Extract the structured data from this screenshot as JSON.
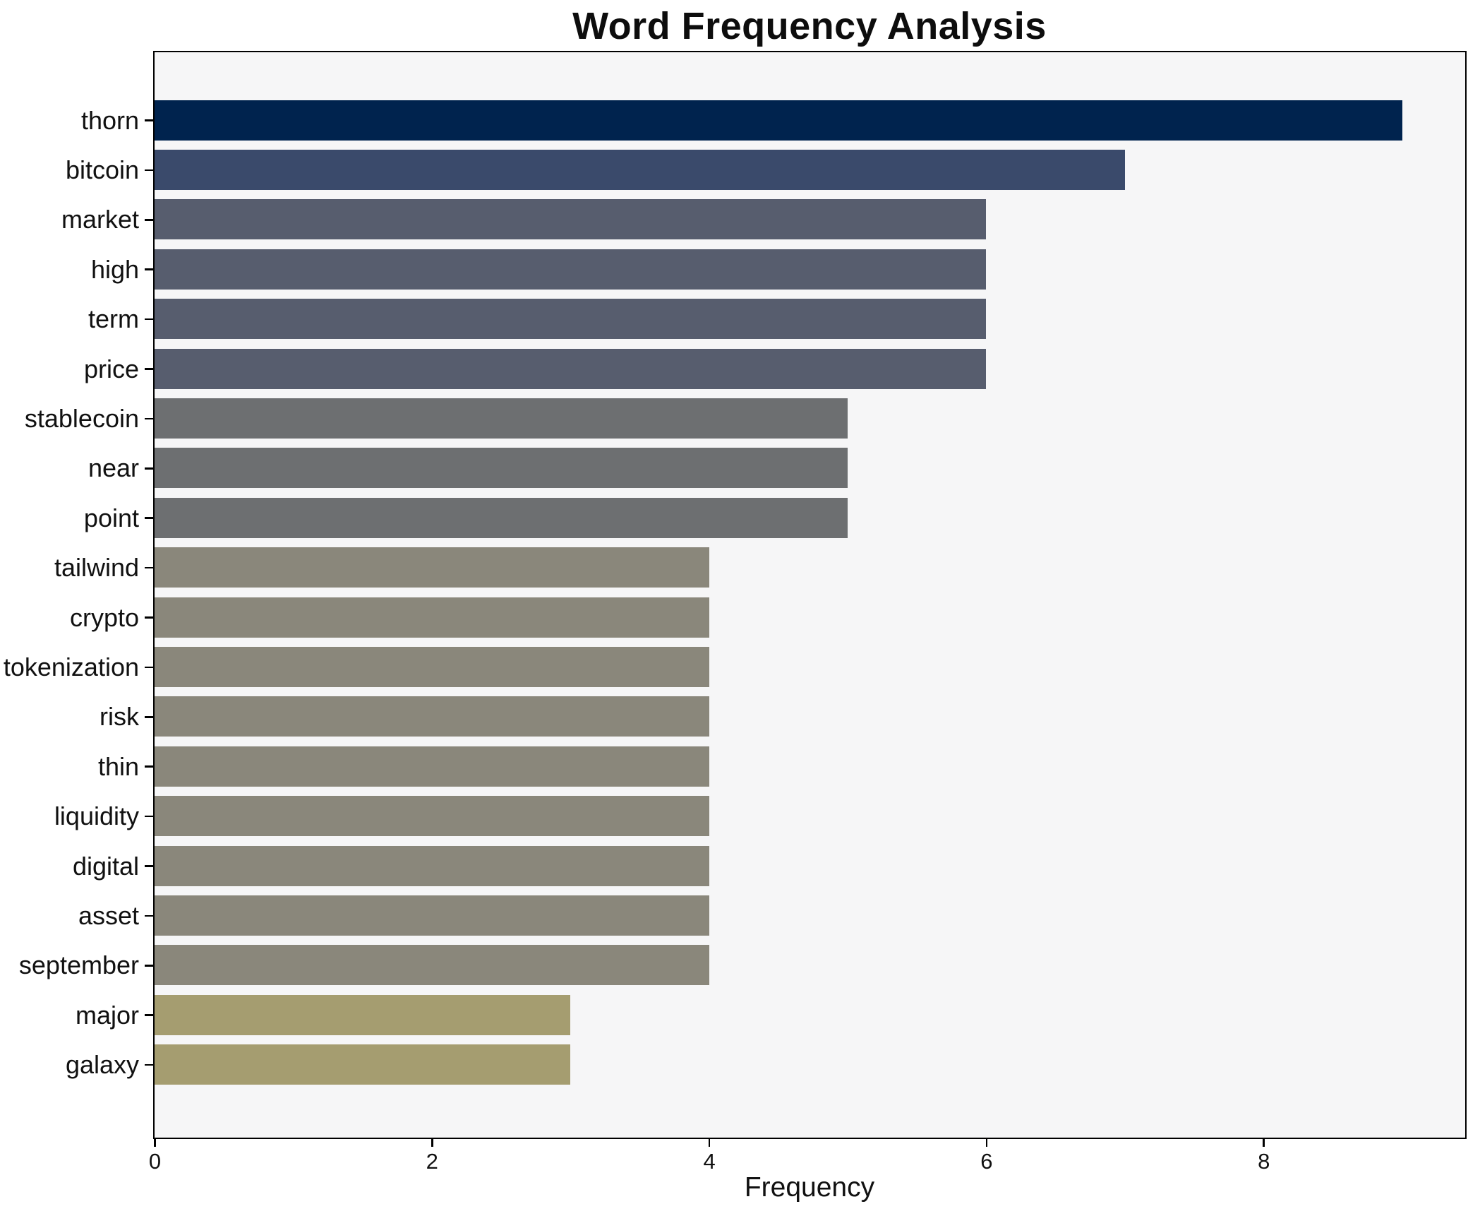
{
  "title": "Word Frequency Analysis",
  "chart_data": {
    "type": "bar",
    "orientation": "horizontal",
    "title": "Word Frequency Analysis",
    "xlabel": "Frequency",
    "ylabel": "",
    "categories": [
      "thorn",
      "bitcoin",
      "market",
      "high",
      "term",
      "price",
      "stablecoin",
      "near",
      "point",
      "tailwind",
      "crypto",
      "tokenization",
      "risk",
      "thin",
      "liquidity",
      "digital",
      "asset",
      "september",
      "major",
      "galaxy"
    ],
    "values": [
      9,
      7,
      6,
      6,
      6,
      6,
      5,
      5,
      5,
      4,
      4,
      4,
      4,
      4,
      4,
      4,
      4,
      4,
      3,
      3
    ],
    "bar_colors": [
      "#00234e",
      "#3a4a6b",
      "#575d6e",
      "#575d6e",
      "#575d6e",
      "#575d6e",
      "#6d6f71",
      "#6d6f71",
      "#6d6f71",
      "#8a877b",
      "#8a877b",
      "#8a877b",
      "#8a877b",
      "#8a877b",
      "#8a877b",
      "#8a877b",
      "#8a877b",
      "#8a877b",
      "#a59d70",
      "#a59d70"
    ],
    "xlim": [
      0,
      9.45
    ],
    "xticks": [
      "0",
      "2",
      "4",
      "6",
      "8"
    ],
    "xtick_values": [
      0,
      2,
      4,
      6,
      8
    ],
    "grid": false,
    "legend": "none",
    "plot_background": "#f6f6f7",
    "figure_background": "#ffffff",
    "spine_color": "#000000",
    "title_color": "#0d0d0d",
    "tick_label_color": "#111111"
  }
}
